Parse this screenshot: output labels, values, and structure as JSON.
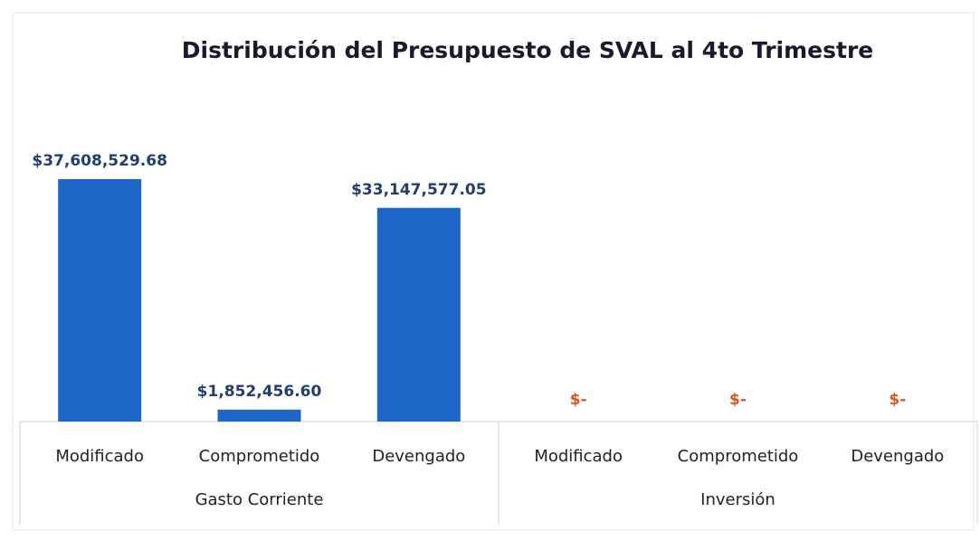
{
  "chart_data": {
    "type": "bar",
    "title": "Distribución del Presupuesto de SVAL al 4to Trimestre",
    "color": "#1f66c9",
    "groups": [
      {
        "name": "Gasto Corriente",
        "categories": [
          "Modificado",
          "Comprometido",
          "Devengado"
        ],
        "values": [
          37608529.68,
          1852456.6,
          33147577.05
        ],
        "value_labels": [
          "$37,608,529.68",
          "$1,852,456.60",
          "$33,147,577.05"
        ],
        "label_color": "#1f3f6e"
      },
      {
        "name": "Inversión",
        "categories": [
          "Modificado",
          "Comprometido",
          "Devengado"
        ],
        "values": [
          0,
          0,
          0
        ],
        "value_labels": [
          "$-",
          "$-",
          "$-"
        ],
        "label_color": "#e0541c"
      }
    ]
  }
}
